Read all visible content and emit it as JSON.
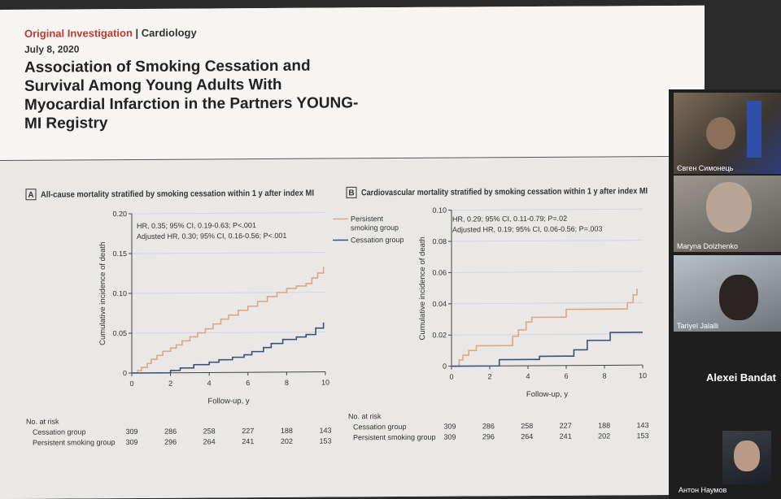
{
  "slide": {
    "kicker_section": "Original Investigation",
    "kicker_separator": " | ",
    "kicker_specialty": "Cardiology",
    "date": "July 8, 2020",
    "title": "Association of Smoking Cessation and Survival Among Young Adults With Myocardial Infarction in the Partners YOUNG-MI Registry"
  },
  "colors": {
    "persistent": "#e0a67f",
    "cessation": "#3c4f78",
    "accent": "#c0392b",
    "grid": "#d4d3ea"
  },
  "chart_data": [
    {
      "type": "line",
      "panel": "A",
      "title": "All-cause mortality stratified by smoking cessation within 1 y after index MI",
      "xlabel": "Follow-up, y",
      "ylabel": "Cumulative incidence of death",
      "xlim": [
        0,
        10
      ],
      "ylim": [
        0,
        0.2
      ],
      "xticks": [
        "0",
        "2",
        "4",
        "6",
        "8",
        "10"
      ],
      "yticks": [
        "0",
        "0.05",
        "0.10",
        "0.15",
        "0.20"
      ],
      "grid": true,
      "stats": [
        "HR, 0.35; 95% CI, 0.19-0.63; P<.001",
        "Adjusted HR, 0.30; 95% CI, 0.16-0.56; P<.001"
      ],
      "series": [
        {
          "name": "Persistent smoking group",
          "x": [
            0,
            0.3,
            0.5,
            0.8,
            1.0,
            1.3,
            1.6,
            2.0,
            2.3,
            2.6,
            3.0,
            3.4,
            3.8,
            4.2,
            4.6,
            5.0,
            5.5,
            6.0,
            6.5,
            7.0,
            7.5,
            8.0,
            8.5,
            9.0,
            9.3,
            9.6,
            9.9
          ],
          "y": [
            0,
            0.003,
            0.007,
            0.012,
            0.017,
            0.022,
            0.027,
            0.031,
            0.035,
            0.04,
            0.045,
            0.05,
            0.055,
            0.061,
            0.067,
            0.072,
            0.078,
            0.083,
            0.089,
            0.095,
            0.1,
            0.105,
            0.108,
            0.111,
            0.118,
            0.124,
            0.132
          ]
        },
        {
          "name": "Cessation group",
          "x": [
            0,
            1.0,
            2.0,
            2.5,
            3.2,
            4.0,
            4.5,
            5.2,
            5.8,
            6.2,
            6.8,
            7.2,
            7.8,
            8.5,
            9.0,
            9.5,
            9.9
          ],
          "y": [
            0,
            0,
            0.003,
            0.006,
            0.01,
            0.013,
            0.016,
            0.019,
            0.022,
            0.026,
            0.031,
            0.036,
            0.041,
            0.044,
            0.047,
            0.055,
            0.062
          ]
        }
      ],
      "risk_table": {
        "title": "No. at risk",
        "rows": [
          {
            "label": "Cessation group",
            "values": [
              "309",
              "286",
              "258",
              "227",
              "188",
              "143"
            ]
          },
          {
            "label": "Persistent smoking group",
            "values": [
              "309",
              "296",
              "264",
              "241",
              "202",
              "153"
            ]
          }
        ]
      }
    },
    {
      "type": "line",
      "panel": "B",
      "title": "Cardiovascular mortality stratified by smoking cessation within 1 y after index MI",
      "xlabel": "Follow-up, y",
      "ylabel": "Cumulative incidence of death",
      "xlim": [
        0,
        10
      ],
      "ylim": [
        0,
        0.1
      ],
      "xticks": [
        "0",
        "2",
        "4",
        "6",
        "8",
        "10"
      ],
      "yticks": [
        "0",
        "0.02",
        "0.04",
        "0.06",
        "0.08",
        "0.10"
      ],
      "grid": true,
      "legend": [
        "Persistent smoking group",
        "Cessation group"
      ],
      "legend_position": "top-left",
      "stats": [
        "HR, 0.29; 95% CI, 0.11-0.79; P=.02",
        "Adjusted HR, 0.19; 95% CI, 0.06-0.56; P=.003"
      ],
      "series": [
        {
          "name": "Persistent smoking group",
          "x": [
            0,
            0.4,
            0.6,
            0.9,
            1.3,
            2.3,
            3.2,
            3.5,
            3.9,
            4.2,
            5.0,
            6.0,
            6.7,
            7.5,
            8.5,
            9.2,
            9.5,
            9.7
          ],
          "y": [
            0,
            0.004,
            0.007,
            0.01,
            0.013,
            0.013,
            0.019,
            0.023,
            0.028,
            0.031,
            0.031,
            0.036,
            0.036,
            0.036,
            0.036,
            0.04,
            0.045,
            0.049
          ]
        },
        {
          "name": "Cessation group",
          "x": [
            0,
            2.5,
            4.2,
            4.6,
            6.0,
            6.4,
            6.8,
            7.1,
            8.3,
            10
          ],
          "y": [
            0,
            0.004,
            0.004,
            0.006,
            0.006,
            0.01,
            0.01,
            0.016,
            0.021,
            0.021
          ]
        }
      ],
      "risk_table": {
        "title": "No. at risk",
        "rows": [
          {
            "label": "Cessation group",
            "values": [
              "309",
              "286",
              "258",
              "227",
              "188",
              "143"
            ]
          },
          {
            "label": "Persistent smoking group",
            "values": [
              "309",
              "296",
              "264",
              "241",
              "202",
              "153"
            ]
          }
        ]
      }
    }
  ],
  "participants": [
    {
      "name": "Євген Симонець"
    },
    {
      "name": "Maryna Dolzhenko"
    },
    {
      "name": "Tariyel Jalalli"
    },
    {
      "name": "Alexei Bandat"
    },
    {
      "name": "Антон Наумов"
    }
  ]
}
